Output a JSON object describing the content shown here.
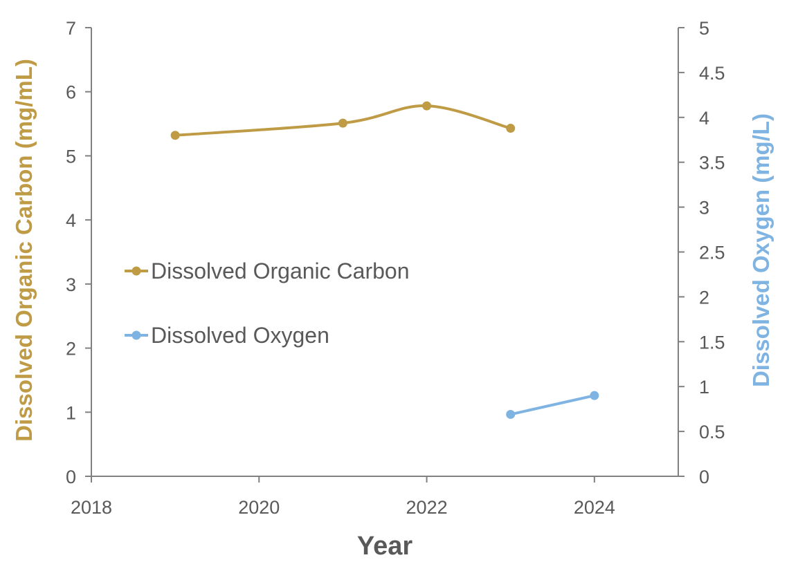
{
  "chart_data": {
    "type": "line",
    "xlabel": "Year",
    "ylabel_left": "Dissolved Organic Carbon (mg/mL)",
    "ylabel_right": "Dissolved Oxygen  (mg/L)",
    "xlim": [
      2018,
      2025
    ],
    "xticks": [
      2018,
      2020,
      2022,
      2024
    ],
    "ylim_left": [
      0,
      7
    ],
    "yticks_left": [
      0,
      1,
      2,
      3,
      4,
      5,
      6,
      7
    ],
    "ylim_right": [
      0,
      5
    ],
    "yticks_right": [
      "0",
      "0.5",
      "1",
      "1.5",
      "2",
      "2.5",
      "3",
      "3.5",
      "4",
      "4.5",
      "5"
    ],
    "grid": false,
    "legend_position": "left-center",
    "series": [
      {
        "name": "Dissolved Organic Carbon",
        "axis": "left",
        "color": "#BF9B46",
        "smooth": true,
        "x": [
          2019,
          2021,
          2022,
          2023
        ],
        "values": [
          5.32,
          5.51,
          5.78,
          5.43
        ]
      },
      {
        "name": "Dissolved Oxygen",
        "axis": "right",
        "color": "#7EB3E2",
        "smooth": false,
        "x": [
          2023,
          2024
        ],
        "values": [
          0.69,
          0.9
        ]
      }
    ]
  },
  "colors": {
    "axis": "#808080",
    "tick_text": "#595959",
    "left_title": "#BF9B46",
    "right_title": "#7EB3E2",
    "x_title": "#595959"
  }
}
